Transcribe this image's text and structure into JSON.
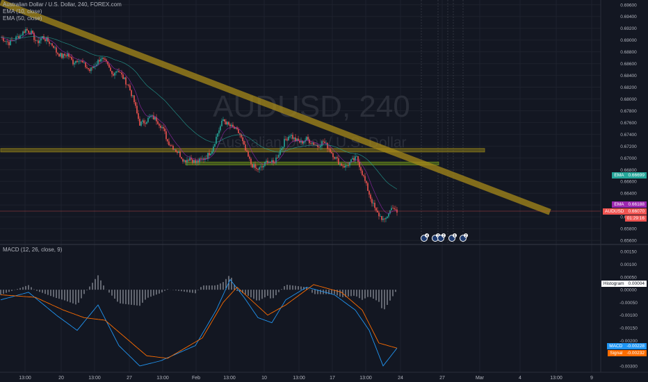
{
  "header": {
    "title": "Australian Dollar / U.S. Dollar, 240, FOREX.com",
    "indicators": [
      "EMA (10, close)",
      "EMA (50, close)"
    ]
  },
  "watermark": {
    "symbol": "AUDUSD, 240",
    "description": "Australian Dollar / U.S. Dollar"
  },
  "macd_legend": "MACD (12, 26, close, 9)",
  "price_axis": {
    "ticks": [
      "0.69600",
      "0.69400",
      "0.69200",
      "0.69000",
      "0.68800",
      "0.68600",
      "0.68400",
      "0.68200",
      "0.68000",
      "0.67800",
      "0.67600",
      "0.67400",
      "0.67200",
      "0.67000",
      "0.66800",
      "0.66600",
      "0.66400",
      "0.66200",
      "0.66000",
      "0.65800",
      "0.65600"
    ]
  },
  "macd_axis": {
    "ticks": [
      "0.00150",
      "0.00100",
      "0.00050",
      "0.00000",
      "-0.00050",
      "-0.00100",
      "-0.00150",
      "-0.00200",
      "-0.00250",
      "-0.00300"
    ]
  },
  "time_axis": {
    "ticks": [
      "13:00",
      "20",
      "13:00",
      "27",
      "13:00",
      "Feb",
      "13:00",
      "10",
      "13:00",
      "17",
      "13:00",
      "24",
      "27",
      "Mar",
      "4",
      "13:00",
      "9"
    ]
  },
  "price_tags": {
    "ema50": {
      "label": "EMA",
      "value": "0.66699",
      "color": "#26a69a"
    },
    "ema10": {
      "label": "EMA",
      "value": "0.66188",
      "color": "#9c27b0"
    },
    "last": {
      "label": "AUDUSD",
      "value": "0.66070",
      "countdown": "01:29:16",
      "color": "#ef5350"
    },
    "histogram": {
      "label": "Histogram",
      "value": "0.00004"
    },
    "macd": {
      "label": "MACD",
      "value": "-0.00228",
      "color": "#2196f3"
    },
    "signal": {
      "label": "Signal",
      "value": "-0.00232",
      "color": "#ff6d00"
    }
  },
  "event_markers": [
    "4",
    "2",
    "2",
    "6",
    "2"
  ],
  "chart_data": [
    {
      "type": "candlestick",
      "title": "Australian Dollar / U.S. Dollar, 240, FOREX.com",
      "ylim": [
        0.6553,
        0.6968
      ],
      "x": [
        "13:00",
        "20",
        "13:00",
        "27",
        "13:00",
        "Feb",
        "13:00",
        "10",
        "13:00",
        "17",
        "13:00",
        "24"
      ],
      "close_path": [
        [
          0,
          0.6905
        ],
        [
          6,
          0.6895
        ],
        [
          10,
          0.6902
        ],
        [
          14,
          0.6908
        ],
        [
          18,
          0.6918
        ],
        [
          22,
          0.6912
        ],
        [
          26,
          0.6895
        ],
        [
          30,
          0.6905
        ],
        [
          34,
          0.6898
        ],
        [
          38,
          0.689
        ],
        [
          40,
          0.688
        ],
        [
          44,
          0.6872
        ],
        [
          48,
          0.6876
        ],
        [
          52,
          0.6862
        ],
        [
          56,
          0.6868
        ],
        [
          60,
          0.6858
        ],
        [
          64,
          0.6848
        ],
        [
          68,
          0.6858
        ],
        [
          72,
          0.687
        ],
        [
          76,
          0.686
        ],
        [
          80,
          0.6842
        ],
        [
          84,
          0.685
        ],
        [
          88,
          0.6836
        ],
        [
          92,
          0.6822
        ],
        [
          96,
          0.6795
        ],
        [
          98,
          0.6775
        ],
        [
          100,
          0.6758
        ],
        [
          104,
          0.6762
        ],
        [
          108,
          0.677
        ],
        [
          112,
          0.6765
        ],
        [
          116,
          0.6752
        ],
        [
          118,
          0.6742
        ],
        [
          120,
          0.6728
        ],
        [
          124,
          0.6718
        ],
        [
          128,
          0.6708
        ],
        [
          132,
          0.6695
        ],
        [
          136,
          0.67
        ],
        [
          140,
          0.6692
        ],
        [
          144,
          0.6696
        ],
        [
          148,
          0.6702
        ],
        [
          152,
          0.6714
        ],
        [
          156,
          0.6742
        ],
        [
          160,
          0.6765
        ],
        [
          164,
          0.6755
        ],
        [
          168,
          0.675
        ],
        [
          172,
          0.674
        ],
        [
          176,
          0.6712
        ],
        [
          180,
          0.669
        ],
        [
          184,
          0.668
        ],
        [
          188,
          0.6684
        ],
        [
          192,
          0.6696
        ],
        [
          196,
          0.669
        ],
        [
          200,
          0.6708
        ],
        [
          204,
          0.6728
        ],
        [
          208,
          0.674
        ],
        [
          212,
          0.673
        ],
        [
          216,
          0.6726
        ],
        [
          220,
          0.6732
        ],
        [
          224,
          0.6726
        ],
        [
          228,
          0.672
        ],
        [
          232,
          0.6728
        ],
        [
          236,
          0.6716
        ],
        [
          240,
          0.6702
        ],
        [
          244,
          0.669
        ],
        [
          248,
          0.6685
        ],
        [
          252,
          0.6694
        ],
        [
          256,
          0.67
        ],
        [
          258,
          0.6688
        ],
        [
          262,
          0.666
        ],
        [
          266,
          0.6632
        ],
        [
          270,
          0.6608
        ],
        [
          274,
          0.6598
        ],
        [
          276,
          0.6592
        ],
        [
          279,
          0.6607
        ],
        [
          282,
          0.6618
        ],
        [
          285,
          0.6605
        ]
      ],
      "series": [
        {
          "name": "EMA (10, close)",
          "last": 0.66188,
          "color": "#9c27b0"
        },
        {
          "name": "EMA (50, close)",
          "last": 0.66699,
          "color": "#26a69a"
        },
        {
          "name": "AUDUSD",
          "last": 0.6607,
          "color": "#ef5350"
        }
      ],
      "annotations": [
        {
          "kind": "trendline",
          "from": [
            0,
            0.6964
          ],
          "to": [
            395,
            0.6608
          ],
          "color": "#a78a1a"
        },
        {
          "kind": "zone",
          "from_x": 0,
          "to_x": 348,
          "y": [
            0.671,
            0.6716
          ],
          "color": "#8a7a1a"
        },
        {
          "kind": "zone",
          "from_x": 133,
          "to_x": 315,
          "y": [
            0.6688,
            0.6693
          ],
          "color": "#6a8a1a"
        }
      ]
    },
    {
      "type": "macd",
      "title": "MACD (12, 26, close, 9)",
      "ylim": [
        -0.00325,
        0.00178
      ],
      "macd_path": [
        [
          0,
          -0.0004
        ],
        [
          20,
          -0.0001
        ],
        [
          40,
          -0.001
        ],
        [
          55,
          -0.0016
        ],
        [
          70,
          -0.0006
        ],
        [
          85,
          -0.0022
        ],
        [
          100,
          -0.003
        ],
        [
          115,
          -0.0028
        ],
        [
          140,
          -0.0022
        ],
        [
          155,
          -0.0008
        ],
        [
          165,
          0.0004
        ],
        [
          175,
          -0.0003
        ],
        [
          185,
          -0.0011
        ],
        [
          195,
          -0.0013
        ],
        [
          205,
          -0.0004
        ],
        [
          220,
          0.0001
        ],
        [
          240,
          -0.0002
        ],
        [
          255,
          -0.0008
        ],
        [
          265,
          -0.0016
        ],
        [
          275,
          -0.003
        ],
        [
          285,
          -0.0023
        ]
      ],
      "signal_path": [
        [
          0,
          -0.0002
        ],
        [
          25,
          -0.0003
        ],
        [
          45,
          -0.0008
        ],
        [
          60,
          -0.0011
        ],
        [
          75,
          -0.0012
        ],
        [
          90,
          -0.0019
        ],
        [
          105,
          -0.0026
        ],
        [
          120,
          -0.0027
        ],
        [
          145,
          -0.0019
        ],
        [
          160,
          -0.0005
        ],
        [
          170,
          0.0001
        ],
        [
          180,
          -0.0004
        ],
        [
          192,
          -0.001
        ],
        [
          205,
          -0.0006
        ],
        [
          225,
          0.0002
        ],
        [
          245,
          -0.0001
        ],
        [
          260,
          -0.0008
        ],
        [
          272,
          -0.0021
        ],
        [
          285,
          -0.0023
        ]
      ],
      "histogram_last": 4e-05
    }
  ]
}
